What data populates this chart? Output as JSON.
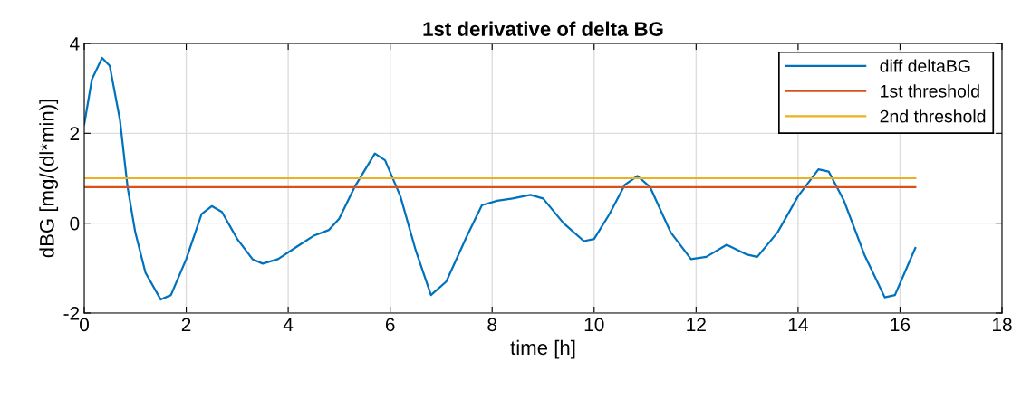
{
  "chart_data": {
    "type": "line",
    "title": "1st derivative of delta BG",
    "xlabel": "time [h]",
    "ylabel": "dBG [mg/(dl*min)]",
    "xlim": [
      0,
      18
    ],
    "xticks": [
      0,
      2,
      4,
      6,
      8,
      10,
      12,
      14,
      16,
      18
    ],
    "ylim": [
      -2,
      4
    ],
    "yticks": [
      -2,
      0,
      2,
      4
    ],
    "grid": true,
    "legend": "top right",
    "series": [
      {
        "name": "diff deltaBG",
        "color": "#0072bd",
        "x": [
          0,
          0.15,
          0.35,
          0.5,
          0.7,
          0.85,
          1.0,
          1.2,
          1.5,
          1.7,
          2.0,
          2.3,
          2.5,
          2.7,
          3.0,
          3.3,
          3.5,
          3.8,
          4.2,
          4.5,
          4.8,
          5.0,
          5.3,
          5.7,
          5.9,
          6.2,
          6.5,
          6.8,
          7.1,
          7.5,
          7.8,
          8.1,
          8.4,
          8.75,
          9.0,
          9.4,
          9.8,
          10.0,
          10.3,
          10.6,
          10.85,
          11.1,
          11.5,
          11.9,
          12.2,
          12.6,
          13.0,
          13.2,
          13.6,
          14.0,
          14.4,
          14.6,
          14.9,
          15.3,
          15.7,
          15.9,
          16.3
        ],
        "values": [
          2.2,
          3.2,
          3.68,
          3.5,
          2.3,
          0.8,
          -0.2,
          -1.1,
          -1.7,
          -1.6,
          -0.8,
          0.2,
          0.38,
          0.25,
          -0.35,
          -0.8,
          -0.9,
          -0.8,
          -0.5,
          -0.28,
          -0.15,
          0.1,
          0.8,
          1.55,
          1.4,
          0.6,
          -0.6,
          -1.6,
          -1.3,
          -0.3,
          0.4,
          0.5,
          0.55,
          0.63,
          0.55,
          0.0,
          -0.4,
          -0.35,
          0.2,
          0.85,
          1.05,
          0.8,
          -0.2,
          -0.8,
          -0.75,
          -0.48,
          -0.7,
          -0.75,
          -0.2,
          0.6,
          1.2,
          1.15,
          0.5,
          -0.7,
          -1.65,
          -1.6,
          -0.55
        ]
      },
      {
        "name": "1st threshold",
        "color": "#d95319",
        "x": [
          0,
          16.3
        ],
        "values": [
          0.8,
          0.8
        ]
      },
      {
        "name": "2nd threshold",
        "color": "#edb120",
        "x": [
          0,
          16.3
        ],
        "values": [
          1.0,
          1.0
        ]
      }
    ]
  }
}
